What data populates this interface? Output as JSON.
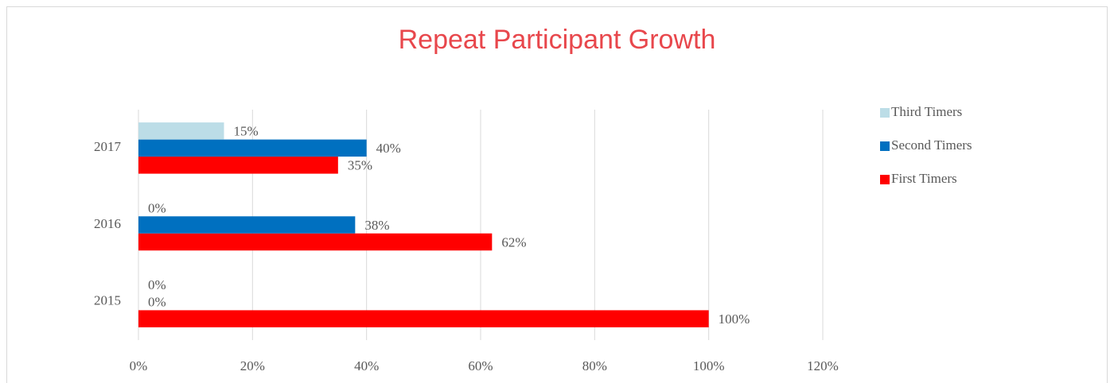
{
  "chart_data": {
    "type": "barh",
    "title": "Repeat Participant Growth",
    "categories": [
      "2015",
      "2016",
      "2017"
    ],
    "series": [
      {
        "name": "First Timers",
        "color": "#ff0000",
        "values": [
          100,
          62,
          35
        ],
        "value_labels": [
          "100%",
          "62%",
          "35%"
        ]
      },
      {
        "name": "Second Timers",
        "color": "#0070c0",
        "values": [
          0,
          38,
          40
        ],
        "value_labels": [
          "0%",
          "38%",
          "40%"
        ]
      },
      {
        "name": "Third Timers",
        "color": "#bcdde7",
        "values": [
          0,
          0,
          15
        ],
        "value_labels": [
          "0%",
          "0%",
          "15%"
        ]
      }
    ],
    "xlim": [
      0,
      120
    ],
    "xticks": [
      {
        "value": 0,
        "label": "0%"
      },
      {
        "value": 20,
        "label": "20%"
      },
      {
        "value": 40,
        "label": "40%"
      },
      {
        "value": 60,
        "label": "60%"
      },
      {
        "value": 80,
        "label": "80%"
      },
      {
        "value": 100,
        "label": "100%"
      },
      {
        "value": 120,
        "label": "120%"
      }
    ],
    "grid": true,
    "legend": "right"
  }
}
